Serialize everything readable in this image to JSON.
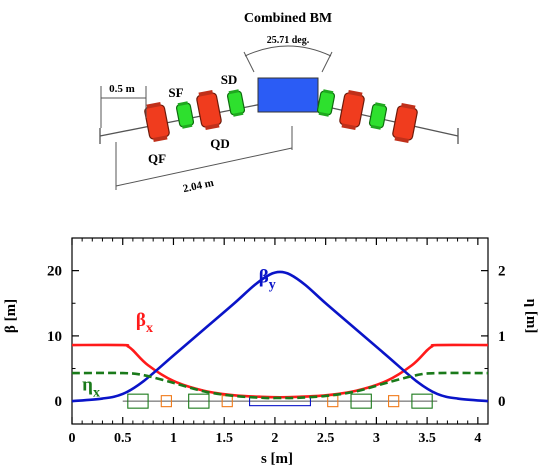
{
  "schematic": {
    "title": "Combined BM",
    "angle_label": "25.71 deg.",
    "dim_05": "0.5 m",
    "dim_204": "2.04 m",
    "labels": {
      "sf": "SF",
      "sd": "SD",
      "qf": "QF",
      "qd": "QD"
    },
    "colors": {
      "quad": "#f03c1e",
      "sext": "#2ee02e",
      "bend": "#2b5cf5",
      "line": "#555555"
    }
  },
  "chart_data": {
    "type": "line",
    "xlabel": "s [m]",
    "ylabel_left": "β [m]",
    "ylabel_right": "η [m]",
    "xlim": [
      0,
      4.1
    ],
    "ylim_left": [
      -3.5,
      25
    ],
    "ylim_right": [
      -0.35,
      2.5
    ],
    "xticks": [
      0,
      0.5,
      1,
      1.5,
      2,
      2.5,
      3,
      3.5,
      4
    ],
    "xtick_labels": [
      "0",
      "0.5",
      "1",
      "1.5",
      "2",
      "2.5",
      "3",
      "3.5",
      "4"
    ],
    "yticks_left": [
      0,
      10,
      20
    ],
    "yticks_left_labels": [
      "0",
      "10",
      "20"
    ],
    "yticks_right": [
      0,
      1,
      2
    ],
    "yticks_right_labels": [
      "0",
      "1",
      "2"
    ],
    "grid": false,
    "series": [
      {
        "name": "β",
        "sub": "x",
        "axis": "left",
        "color": "#ff1a1a",
        "dash": false,
        "x": [
          0,
          0.5,
          0.55,
          0.6,
          0.75,
          1.0,
          1.3,
          1.6,
          1.9,
          2.05,
          2.2,
          2.5,
          2.8,
          3.1,
          3.35,
          3.5,
          3.55,
          3.6,
          4.1
        ],
        "values": [
          8.6,
          8.6,
          8.4,
          7.8,
          5.5,
          3.1,
          1.6,
          0.9,
          0.65,
          0.6,
          0.65,
          0.9,
          1.6,
          3.1,
          5.5,
          7.8,
          8.4,
          8.6,
          8.6
        ]
      },
      {
        "name": "β",
        "sub": "y",
        "axis": "left",
        "color": "#0a14c8",
        "dash": false,
        "x": [
          0,
          0.3,
          0.5,
          0.7,
          1.0,
          1.3,
          1.6,
          1.8,
          1.95,
          2.05,
          2.15,
          2.3,
          2.5,
          2.8,
          3.1,
          3.4,
          3.6,
          3.8,
          4.1
        ],
        "values": [
          0,
          0.4,
          1.1,
          3.0,
          7.0,
          11.0,
          15.0,
          17.8,
          19.4,
          19.8,
          19.4,
          17.8,
          15.0,
          11.0,
          7.0,
          3.0,
          1.1,
          0.4,
          0
        ]
      },
      {
        "name": "η",
        "sub": "x",
        "axis": "right",
        "color": "#1a7a1a",
        "dash": true,
        "x": [
          0,
          0.5,
          0.7,
          1.0,
          1.3,
          1.6,
          1.9,
          2.05,
          2.2,
          2.5,
          2.8,
          3.1,
          3.4,
          3.6,
          4.1
        ],
        "values": [
          0.43,
          0.43,
          0.4,
          0.28,
          0.15,
          0.08,
          0.05,
          0.05,
          0.05,
          0.08,
          0.15,
          0.28,
          0.4,
          0.43,
          0.43
        ]
      }
    ],
    "lattice_elements": [
      {
        "type": "quad",
        "start": 0.55,
        "end": 0.75,
        "color": "#1a7a1a"
      },
      {
        "type": "sext",
        "start": 0.88,
        "end": 0.98,
        "color": "#f07a1a"
      },
      {
        "type": "quad",
        "start": 1.15,
        "end": 1.35,
        "color": "#1a7a1a"
      },
      {
        "type": "sext",
        "start": 1.48,
        "end": 1.58,
        "color": "#f07a1a"
      },
      {
        "type": "bend",
        "start": 1.75,
        "end": 2.35,
        "color": "#0a14c8"
      },
      {
        "type": "sext",
        "start": 2.52,
        "end": 2.62,
        "color": "#f07a1a"
      },
      {
        "type": "quad",
        "start": 2.75,
        "end": 2.95,
        "color": "#1a7a1a"
      },
      {
        "type": "sext",
        "start": 3.12,
        "end": 3.22,
        "color": "#f07a1a"
      },
      {
        "type": "quad",
        "start": 3.35,
        "end": 3.55,
        "color": "#1a7a1a"
      }
    ]
  }
}
